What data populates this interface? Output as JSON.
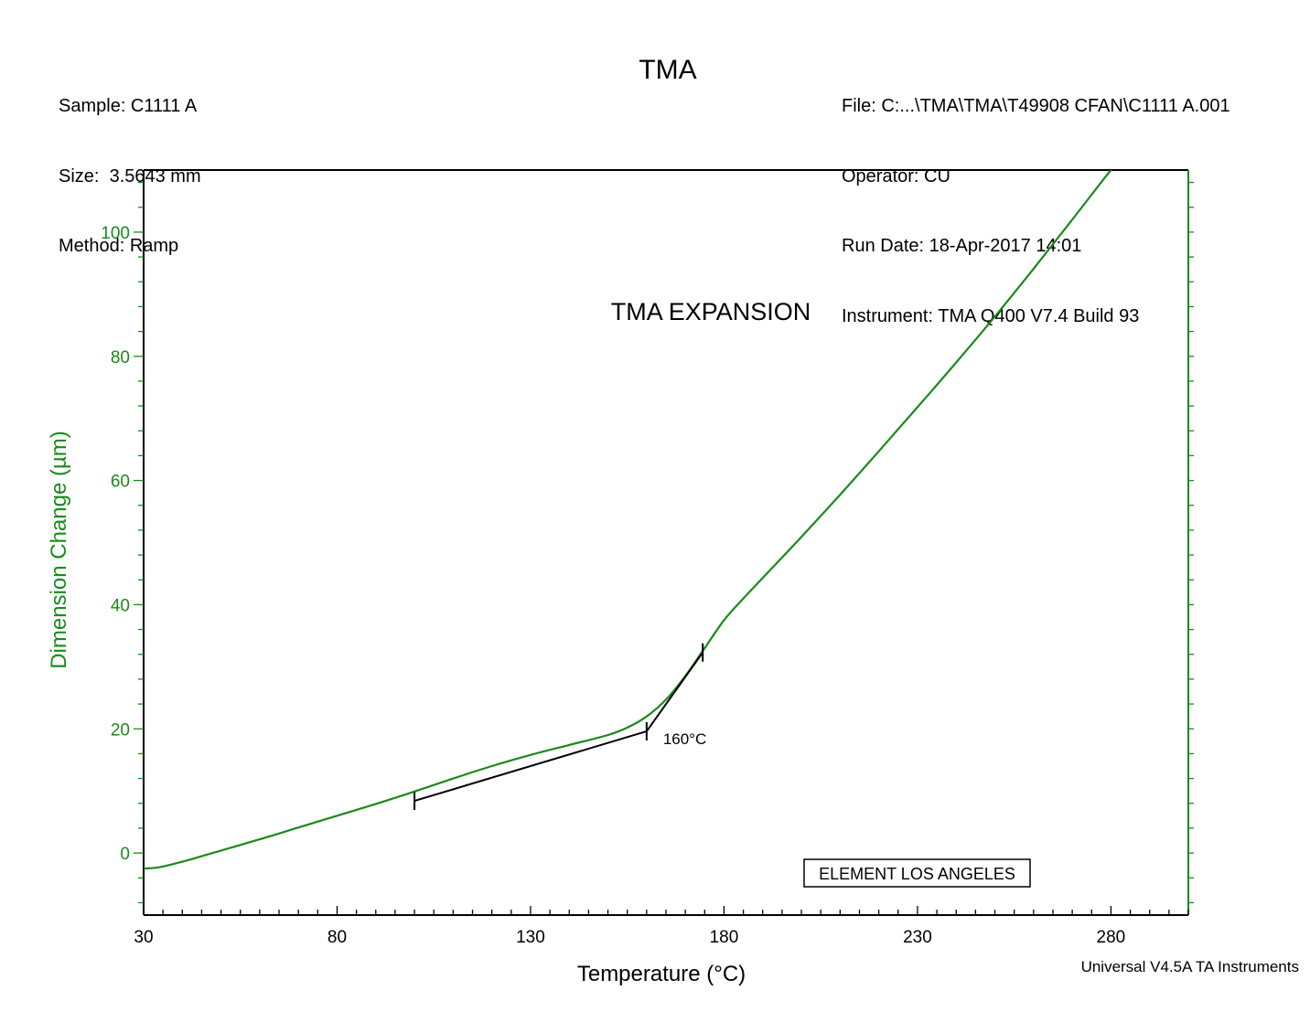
{
  "header": {
    "left": {
      "sample": "Sample: C1111 A",
      "size": "Size:  3.5643 mm",
      "method": "Method: Ramp"
    },
    "title": "TMA",
    "right": {
      "file": "File: C:...\\TMA\\TMA\\T49908 CFAN\\C1111 A.001",
      "operator": "Operator: CU",
      "run_date": "Run Date: 18-Apr-2017 14:01",
      "instrument": "Instrument: TMA Q400 V7.4 Build 93"
    }
  },
  "footer": "Universal V4.5A TA Instruments",
  "colors": {
    "curve": "#1a8a1a",
    "axis_left": "#1a8a1a",
    "analysis": "#000000",
    "frame": "#000000"
  },
  "chart_data": {
    "type": "line",
    "title": "TMA EXPANSION",
    "xlabel": "Temperature (°C)",
    "ylabel": "Dimension Change (µm)",
    "xlim": [
      30,
      300
    ],
    "ylim": [
      -10,
      110
    ],
    "x_ticks": [
      30,
      80,
      130,
      180,
      230,
      280
    ],
    "y_ticks": [
      0,
      20,
      40,
      60,
      80,
      100
    ],
    "grid": false,
    "series": [
      {
        "x": [
          30,
          34,
          40,
          50,
          60,
          70,
          80,
          90,
          100,
          110,
          120,
          130,
          140,
          150,
          155,
          160,
          165,
          170,
          175,
          180,
          185,
          190,
          200,
          210,
          220,
          230,
          240,
          250,
          260,
          270,
          280,
          282
        ],
        "y": [
          -2.5,
          -2.3,
          -1.4,
          0.4,
          2.2,
          4.1,
          6.0,
          7.9,
          9.9,
          12.0,
          14.0,
          15.8,
          17.4,
          19.0,
          20.2,
          22.0,
          24.7,
          28.5,
          33.0,
          37.5,
          41.0,
          44.3,
          50.9,
          57.7,
          64.7,
          71.8,
          79.0,
          86.4,
          94.1,
          102.0,
          110.0,
          111.0
        ]
      }
    ],
    "analysis": {
      "tangent_lines": [
        {
          "from": [
            100,
            8.4
          ],
          "to": [
            160,
            19.6
          ]
        },
        {
          "from": [
            160,
            19.6
          ],
          "to": [
            174.5,
            32.3
          ]
        }
      ],
      "markers": [
        {
          "x": 100,
          "y": 8.4
        },
        {
          "x": 160,
          "y": 19.6
        },
        {
          "x": 174.5,
          "y": 32.3
        }
      ],
      "label": "160°C"
    },
    "annotation_box": "ELEMENT LOS ANGELES"
  }
}
